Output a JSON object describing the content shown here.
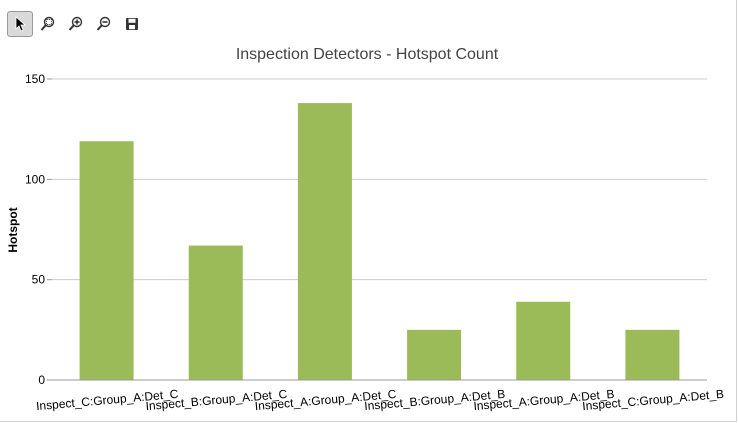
{
  "toolbar": {
    "tools": [
      {
        "icon": "pointer-icon",
        "active": true
      },
      {
        "icon": "zoom-area-icon",
        "active": false
      },
      {
        "icon": "zoom-in-icon",
        "active": false
      },
      {
        "icon": "zoom-out-icon",
        "active": false
      },
      {
        "icon": "save-icon",
        "active": false
      }
    ]
  },
  "chart_data": {
    "type": "bar",
    "title": "Inspection Detectors - Hotspot Count",
    "xlabel": "",
    "ylabel": "Hotspot",
    "categories": [
      "Inspect_C:Group_A:Det_C",
      "Inspect_B:Group_A:Det_C",
      "Inspect_A:Group_A:Det_C",
      "Inspect_B:Group_A:Det_B",
      "Inspect_A:Group_A:Det_B",
      "Inspect_C:Group_A:Det_B"
    ],
    "values": [
      119,
      67,
      138,
      25,
      39,
      25
    ],
    "ylim": [
      0,
      150
    ],
    "yticks": [
      0,
      50,
      100,
      150
    ],
    "grid": true,
    "bar_color": "#9bbb59"
  }
}
